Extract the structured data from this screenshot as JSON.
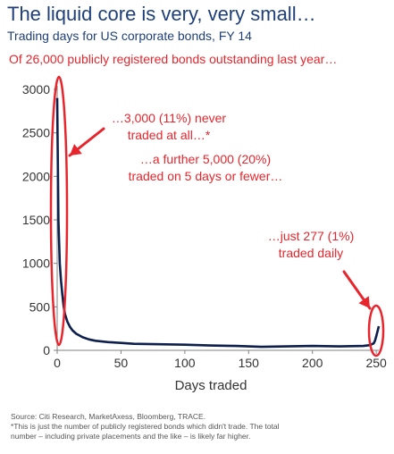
{
  "header": {
    "title": "The liquid core is very, very small…",
    "subtitle": "Trading days for US corporate bonds, FY 14",
    "lead": "Of 26,000 publicly registered bonds outstanding last year…"
  },
  "colors": {
    "title": "#1f3f7a",
    "series": "#0d1f4d",
    "annotation": "#e8252c",
    "axis_text": "#333333"
  },
  "chart_data": {
    "type": "line",
    "xlabel": "Days traded",
    "ylabel": "",
    "xlim": [
      0,
      252
    ],
    "ylim": [
      0,
      3000
    ],
    "xticks": [
      0,
      50,
      100,
      150,
      200,
      250
    ],
    "yticks": [
      0,
      500,
      1000,
      1500,
      2000,
      2500,
      3000
    ],
    "grid": false,
    "x": [
      0,
      1,
      2,
      3,
      4,
      5,
      6,
      8,
      10,
      12,
      15,
      20,
      25,
      30,
      40,
      50,
      60,
      80,
      100,
      120,
      140,
      160,
      180,
      200,
      220,
      240,
      245,
      248,
      249,
      250,
      251,
      252
    ],
    "y": [
      2900,
      1500,
      1000,
      800,
      650,
      520,
      420,
      330,
      270,
      230,
      190,
      150,
      125,
      110,
      95,
      85,
      75,
      70,
      65,
      55,
      50,
      40,
      45,
      50,
      45,
      50,
      60,
      80,
      110,
      160,
      220,
      277
    ],
    "annotations": [
      {
        "lines": [
          "…3,000 (11%) never",
          "traded at all…*"
        ]
      },
      {
        "lines": [
          "…a further 5,000 (20%)",
          "traded on 5 days or fewer…"
        ]
      },
      {
        "lines": [
          "…just 277 (1%)",
          "traded daily"
        ]
      }
    ]
  },
  "footer": {
    "source": "Source: Citi Research, MarketAxess, Bloomberg, TRACE.",
    "note1": "*This is just the number of publicly registered bonds which didn't trade.  The total",
    "note2": "number – including private placements and the like – is likely far higher."
  }
}
